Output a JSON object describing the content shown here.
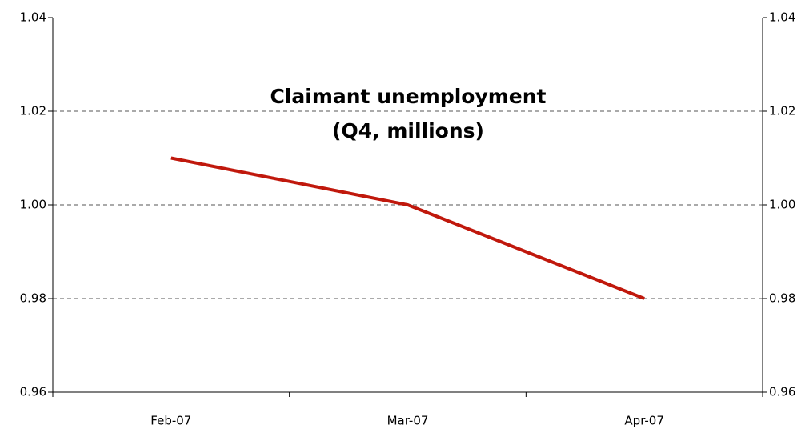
{
  "chart_data": {
    "type": "line",
    "title": [
      "Claimant unemployment",
      "(Q4, millions)"
    ],
    "categories": [
      "Feb-07",
      "Mar-07",
      "Apr-07"
    ],
    "series": [
      {
        "name": "Claimant unemployment",
        "color": "#c0180c",
        "values": [
          1.01,
          1.0,
          0.98
        ]
      }
    ],
    "ylim": [
      0.96,
      1.04
    ],
    "yticks": [
      0.96,
      0.98,
      {
        "value": 1,
        "label": "1.00"
      },
      1.02,
      1.04
    ],
    "y2lim": [
      0.96,
      1.04
    ],
    "y2ticks": [
      0.96,
      0.98,
      {
        "value": 1,
        "label": "1.00"
      },
      1.02,
      1.04
    ],
    "grid": true
  }
}
